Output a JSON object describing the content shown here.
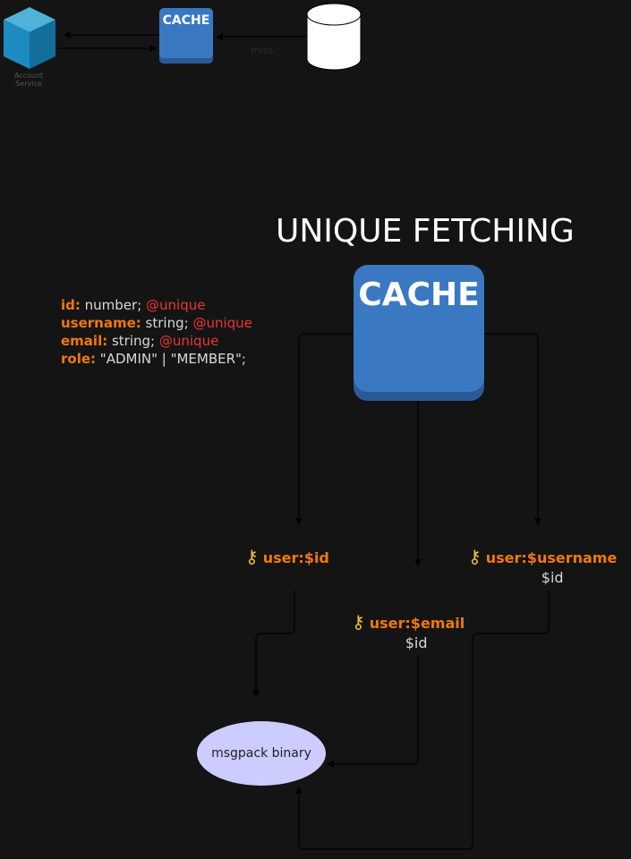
{
  "top": {
    "service_label_line1": "Account",
    "service_label_line2": "Service",
    "cache_label": "CACHE",
    "miss_label": "miss"
  },
  "title": "UNIQUE FETCHING",
  "cache_label": "CACHE",
  "schema": [
    {
      "key": "id:",
      "type": " number; ",
      "unique": "@unique"
    },
    {
      "key": "username:",
      "type": " string; ",
      "unique": "@unique"
    },
    {
      "key": "email:",
      "type": " string; ",
      "unique": "@unique"
    },
    {
      "key": "role:",
      "type": " \"ADMIN\" | \"MEMBER\";",
      "unique": ""
    }
  ],
  "keys": {
    "id": {
      "label": "user:$id"
    },
    "email": {
      "label": "user:$email",
      "value": "$id"
    },
    "username": {
      "label": "user:$username",
      "value": "$id"
    }
  },
  "store_label": "msgpack binary",
  "colors": {
    "background": "#141414",
    "cache": "#3a78c2",
    "key_text": "#f0780c",
    "unique_text": "#f03434",
    "ellipse": "#ccccff",
    "key_icon": "#f2c230"
  },
  "icons": [
    "cube-icon",
    "database-icon",
    "key-icon"
  ]
}
